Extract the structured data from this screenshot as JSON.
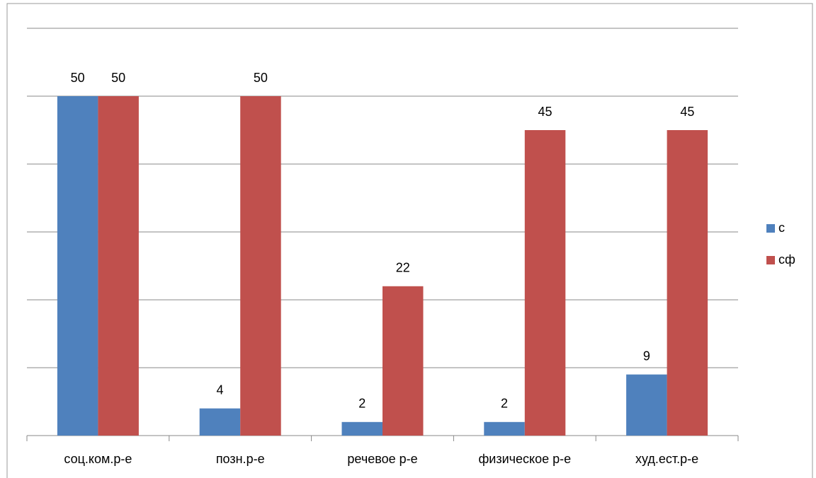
{
  "chart_data": {
    "type": "bar",
    "categories": [
      "соц.ком.р-е",
      "позн.р-е",
      "речевое р-е",
      "физическое р-е",
      "худ.ест.р-е"
    ],
    "series": [
      {
        "name": "с",
        "color": "#4f81bd",
        "values": [
          50,
          4,
          2,
          2,
          9
        ]
      },
      {
        "name": "сф",
        "color": "#c0504d",
        "values": [
          50,
          50,
          22,
          45,
          45
        ]
      }
    ],
    "ylim": [
      0,
      60
    ],
    "yticks": [
      0,
      10,
      20,
      30,
      40,
      50,
      60
    ],
    "grid": true,
    "legend": "right"
  }
}
